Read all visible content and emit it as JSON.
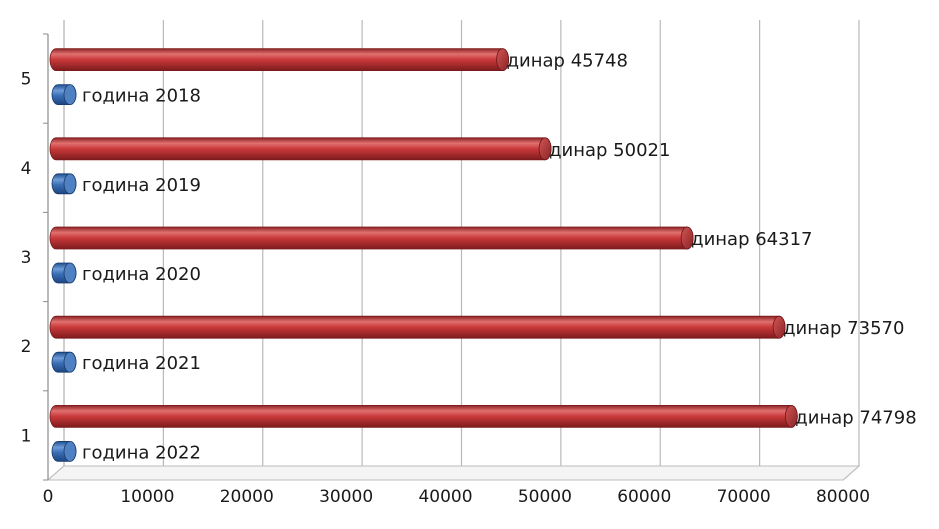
{
  "chart_data": {
    "type": "bar",
    "orientation": "horizontal",
    "style": "3d-cylinder",
    "categories": [
      "1",
      "2",
      "3",
      "4",
      "5"
    ],
    "series": [
      {
        "values": [
          2022,
          2021,
          2020,
          2019,
          2018
        ],
        "color": "#3a6fb5",
        "labels": [
          "година 2022",
          "година 2021",
          "година 2020",
          "година 2019",
          "година 2018"
        ]
      },
      {
        "values": [
          74798,
          73570,
          64317,
          50021,
          45748
        ],
        "color": "#c0393b",
        "labels": [
          "динар 74798",
          "динар 73570",
          "динар 64317",
          "динар 50021",
          "динар 45748"
        ]
      }
    ],
    "x_ticks": [
      "0",
      "10000",
      "20000",
      "30000",
      "40000",
      "50000",
      "60000",
      "70000",
      "80000"
    ],
    "xlim": [
      0,
      80000
    ],
    "grid": true,
    "legend": "none"
  }
}
